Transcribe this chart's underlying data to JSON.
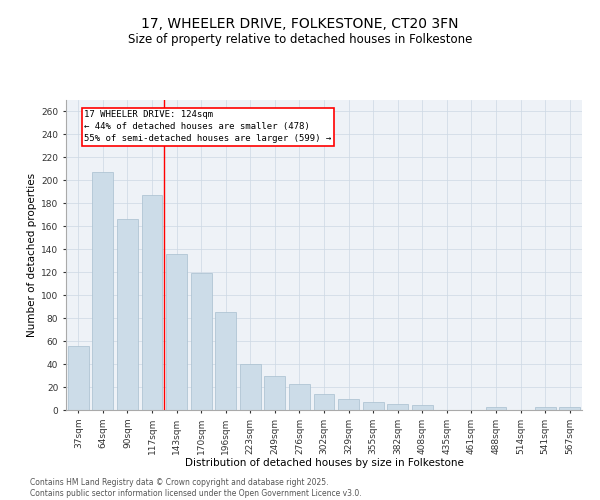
{
  "title": "17, WHEELER DRIVE, FOLKESTONE, CT20 3FN",
  "subtitle": "Size of property relative to detached houses in Folkestone",
  "xlabel": "Distribution of detached houses by size in Folkestone",
  "ylabel": "Number of detached properties",
  "categories": [
    "37sqm",
    "64sqm",
    "90sqm",
    "117sqm",
    "143sqm",
    "170sqm",
    "196sqm",
    "223sqm",
    "249sqm",
    "276sqm",
    "302sqm",
    "329sqm",
    "355sqm",
    "382sqm",
    "408sqm",
    "435sqm",
    "461sqm",
    "488sqm",
    "514sqm",
    "541sqm",
    "567sqm"
  ],
  "values": [
    56,
    207,
    166,
    187,
    136,
    119,
    85,
    40,
    30,
    23,
    14,
    10,
    7,
    5,
    4,
    0,
    0,
    3,
    0,
    3,
    3
  ],
  "bar_color": "#ccdce8",
  "bar_edge_color": "#a8bfcf",
  "ylim": [
    0,
    270
  ],
  "yticks": [
    0,
    20,
    40,
    60,
    80,
    100,
    120,
    140,
    160,
    180,
    200,
    220,
    240,
    260
  ],
  "property_line_x": 3.5,
  "annotation_line1": "17 WHEELER DRIVE: 124sqm",
  "annotation_line2": "← 44% of detached houses are smaller (478)",
  "annotation_line3": "55% of semi-detached houses are larger (599) →",
  "grid_color": "#ccd8e4",
  "bg_color": "#eef2f7",
  "footer_text": "Contains HM Land Registry data © Crown copyright and database right 2025.\nContains public sector information licensed under the Open Government Licence v3.0.",
  "title_fontsize": 10,
  "subtitle_fontsize": 8.5,
  "axis_label_fontsize": 7.5,
  "tick_fontsize": 6.5,
  "annotation_fontsize": 6.5,
  "footer_fontsize": 5.5
}
